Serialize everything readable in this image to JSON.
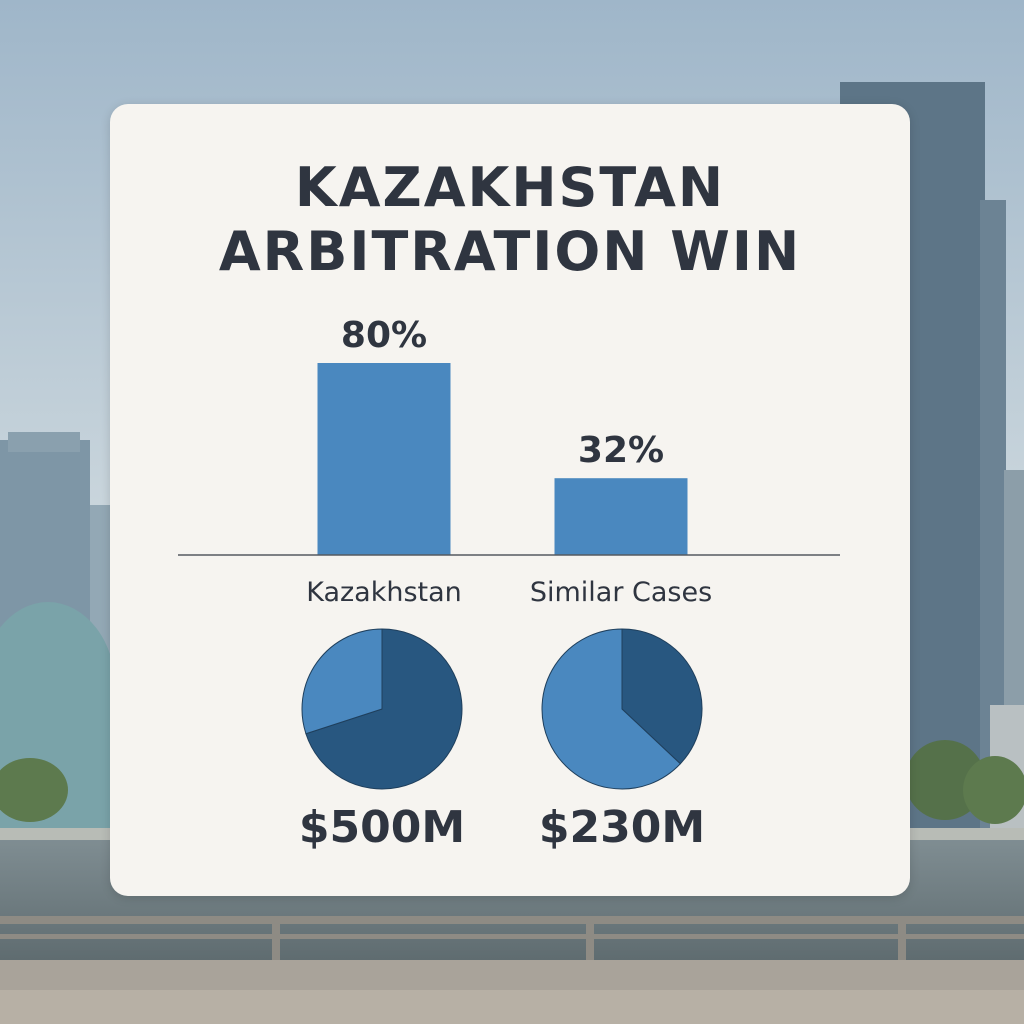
{
  "title_line1": "KAZAKHSTAN",
  "title_line2": "ARBITRATION WIN",
  "colors": {
    "bar": "#4a88bf",
    "pie_light": "#4a88bf",
    "pie_dark": "#285780",
    "text": "#2f3540",
    "card": "#f6f4f0"
  },
  "chart_data": [
    {
      "type": "bar",
      "categories": [
        "Kazakhstan",
        "Similar Cases"
      ],
      "values": [
        80,
        32
      ],
      "value_labels": [
        "80%",
        "32%"
      ],
      "ylim": [
        0,
        100
      ],
      "grid": false,
      "title": "KAZAKHSTAN ARBITRATION WIN"
    },
    {
      "type": "pie",
      "label": "$500M",
      "slices": [
        {
          "share": 0.7,
          "color": "#285780"
        },
        {
          "share": 0.3,
          "color": "#4a88bf"
        }
      ]
    },
    {
      "type": "pie",
      "label": "$230M",
      "slices": [
        {
          "share": 0.37,
          "color": "#285780"
        },
        {
          "share": 0.63,
          "color": "#4a88bf"
        }
      ]
    }
  ]
}
